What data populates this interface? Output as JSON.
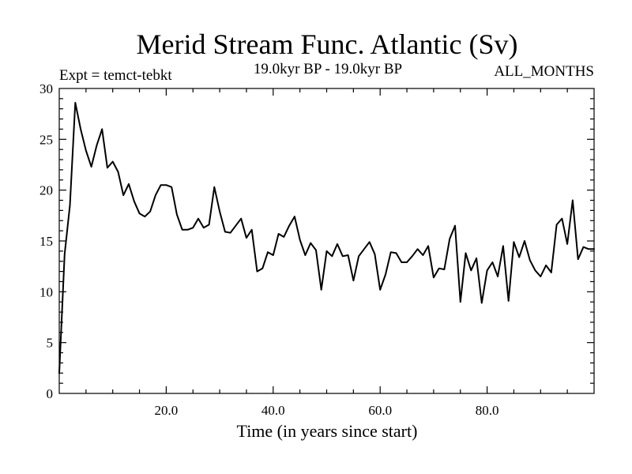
{
  "chart_data": {
    "type": "line",
    "title": "Merid Stream Func. Atlantic (Sv)",
    "subtitle_left": "Expt = temct-tebkt",
    "subtitle_center": "19.0kyr BP - 19.0kyr BP",
    "subtitle_right": "ALL_MONTHS",
    "xlabel": "Time (in years since start)",
    "ylabel": "",
    "xlim": [
      0,
      100
    ],
    "ylim": [
      0,
      30
    ],
    "xticks": [
      20,
      40,
      60,
      80
    ],
    "xtick_labels": [
      "20.0",
      "40.0",
      "60.0",
      "80.0"
    ],
    "yticks": [
      0,
      5,
      10,
      15,
      20,
      25,
      30
    ],
    "ytick_labels": [
      "0",
      "5",
      "10",
      "15",
      "20",
      "25",
      "30"
    ],
    "grid": false,
    "series": [
      {
        "name": "Merid Stream Func. Atlantic",
        "color": "#000000",
        "x": [
          0,
          1,
          2,
          3,
          4,
          5,
          6,
          7,
          8,
          9,
          10,
          11,
          12,
          13,
          14,
          15,
          16,
          17,
          18,
          19,
          20,
          21,
          22,
          23,
          24,
          25,
          26,
          27,
          28,
          29,
          30,
          31,
          32,
          33,
          34,
          35,
          36,
          37,
          38,
          39,
          40,
          41,
          42,
          43,
          44,
          45,
          46,
          47,
          48,
          49,
          50,
          51,
          52,
          53,
          54,
          55,
          56,
          57,
          58,
          59,
          60,
          61,
          62,
          63,
          64,
          65,
          66,
          67,
          68,
          69,
          70,
          71,
          72,
          73,
          74,
          75,
          76,
          77,
          78,
          79,
          80,
          81,
          82,
          83,
          84,
          85,
          86,
          87,
          88,
          89,
          90,
          91,
          92,
          93,
          94,
          95,
          96,
          97,
          98,
          99,
          100
        ],
        "values": [
          2.0,
          13.7,
          18.5,
          28.6,
          26.0,
          23.9,
          22.3,
          24.4,
          26.0,
          22.2,
          22.8,
          21.8,
          19.5,
          20.6,
          18.9,
          17.7,
          17.4,
          17.9,
          19.5,
          20.5,
          20.5,
          20.3,
          17.6,
          16.1,
          16.1,
          16.3,
          17.2,
          16.3,
          16.6,
          20.3,
          17.9,
          15.9,
          15.8,
          16.5,
          17.2,
          15.3,
          16.1,
          12.0,
          12.3,
          13.9,
          13.6,
          15.7,
          15.4,
          16.5,
          17.4,
          15.1,
          13.6,
          14.8,
          14.1,
          10.2,
          14.0,
          13.5,
          14.7,
          13.5,
          13.6,
          11.1,
          13.5,
          14.2,
          14.9,
          13.7,
          10.2,
          11.7,
          13.9,
          13.8,
          12.9,
          12.9,
          13.5,
          14.2,
          13.6,
          14.5,
          11.4,
          12.3,
          12.2,
          15.2,
          16.5,
          9.0,
          13.8,
          12.1,
          13.3,
          8.9,
          12.1,
          12.9,
          11.5,
          14.5,
          9.1,
          14.9,
          13.4,
          15.0,
          13.1,
          12.1,
          11.5,
          12.6,
          11.9,
          16.6,
          17.2,
          14.7,
          19.0,
          13.2,
          14.4,
          14.2,
          14.2
        ]
      }
    ]
  }
}
